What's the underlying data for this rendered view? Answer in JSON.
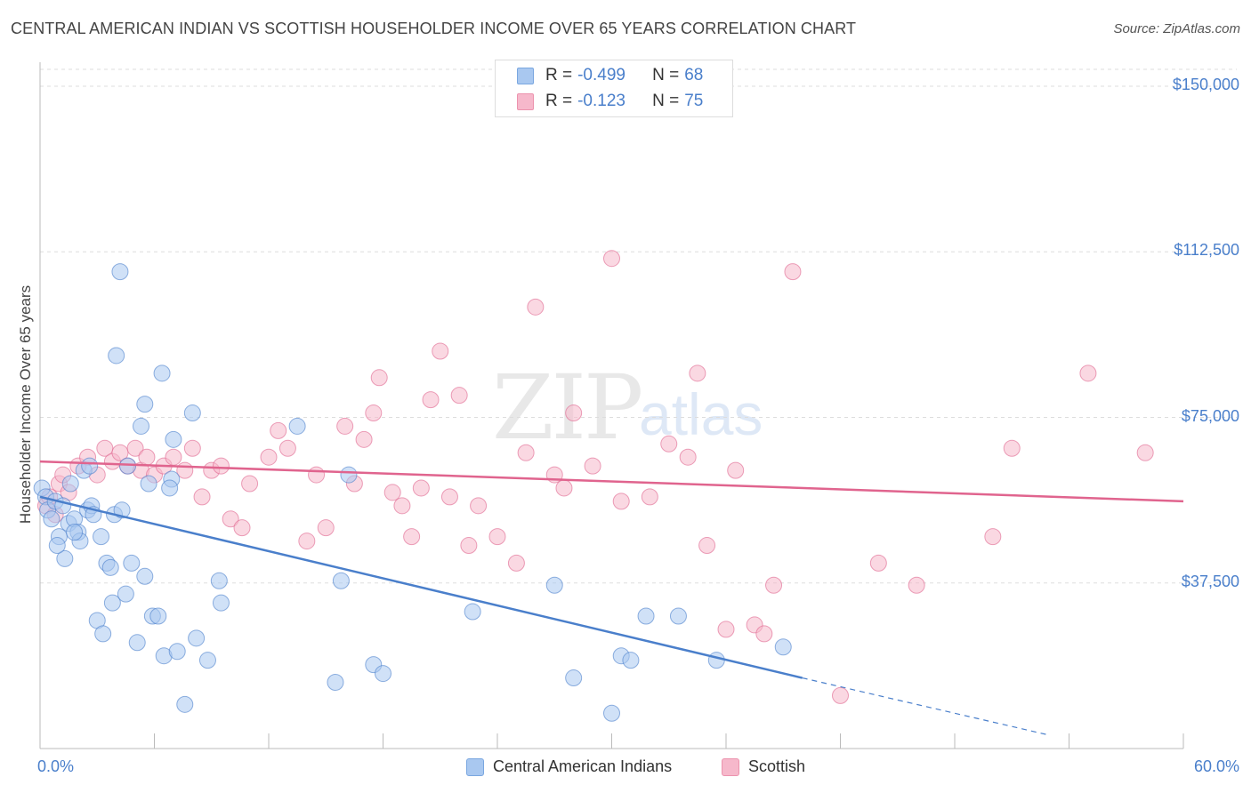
{
  "title": "CENTRAL AMERICAN INDIAN VS SCOTTISH HOUSEHOLDER INCOME OVER 65 YEARS CORRELATION CHART",
  "source": "Source: ZipAtlas.com",
  "watermark": {
    "zip": "ZIP",
    "atlas": "atlas"
  },
  "legend": {
    "rows": [
      {
        "r_label": "R = ",
        "r_value": "-0.499",
        "n_label": "N = ",
        "n_value": "68",
        "color": "#a9c8f0"
      },
      {
        "r_label": "R = ",
        "r_value": "-0.123",
        "n_label": "N = ",
        "n_value": "75",
        "color": "#f6b8cb"
      }
    ]
  },
  "bottom_legend": {
    "series1": "Central American Indians",
    "series2": "Scottish"
  },
  "chart_data": {
    "type": "scatter",
    "title": "CENTRAL AMERICAN INDIAN VS SCOTTISH HOUSEHOLDER INCOME OVER 65 YEARS CORRELATION CHART",
    "xlabel": "",
    "ylabel": "Householder Income Over 65 years",
    "xlim": [
      0,
      60
    ],
    "ylim": [
      0,
      155000
    ],
    "x_tick_labels": [
      "0.0%",
      "60.0%"
    ],
    "y_tick_values": [
      37500,
      75000,
      112500,
      150000
    ],
    "y_tick_labels": [
      "$37,500",
      "$75,000",
      "$112,500",
      "$150,000"
    ],
    "grid": true,
    "legend_position": "top-center",
    "series": [
      {
        "name": "Central American Indians",
        "color": "#4a7fcb",
        "fill": "#a9c8f0",
        "trend": {
          "x": [
            0,
            40
          ],
          "y": [
            57000,
            16000
          ],
          "dashed_to": [
            53,
            3000
          ]
        },
        "points": [
          [
            0.1,
            59000
          ],
          [
            0.3,
            57000
          ],
          [
            0.4,
            54000
          ],
          [
            0.6,
            52000
          ],
          [
            0.8,
            56000
          ],
          [
            1.0,
            48000
          ],
          [
            1.2,
            55000
          ],
          [
            1.3,
            43000
          ],
          [
            1.5,
            51000
          ],
          [
            1.6,
            60000
          ],
          [
            1.8,
            52000
          ],
          [
            2.0,
            49000
          ],
          [
            2.1,
            47000
          ],
          [
            2.3,
            63000
          ],
          [
            2.5,
            54000
          ],
          [
            2.6,
            64000
          ],
          [
            2.7,
            55000
          ],
          [
            2.8,
            53000
          ],
          [
            3.0,
            29000
          ],
          [
            3.2,
            48000
          ],
          [
            3.3,
            26000
          ],
          [
            3.5,
            42000
          ],
          [
            3.7,
            41000
          ],
          [
            3.8,
            33000
          ],
          [
            3.9,
            53000
          ],
          [
            4.0,
            89000
          ],
          [
            4.2,
            108000
          ],
          [
            4.3,
            54000
          ],
          [
            4.5,
            35000
          ],
          [
            4.6,
            64000
          ],
          [
            5.1,
            24000
          ],
          [
            5.3,
            73000
          ],
          [
            5.5,
            78000
          ],
          [
            5.7,
            60000
          ],
          [
            5.9,
            30000
          ],
          [
            6.2,
            30000
          ],
          [
            6.4,
            85000
          ],
          [
            6.5,
            21000
          ],
          [
            6.9,
            61000
          ],
          [
            7.0,
            70000
          ],
          [
            7.2,
            22000
          ],
          [
            7.6,
            10000
          ],
          [
            8.0,
            76000
          ],
          [
            8.2,
            25000
          ],
          [
            8.8,
            20000
          ],
          [
            9.4,
            38000
          ],
          [
            9.5,
            33000
          ],
          [
            13.5,
            73000
          ],
          [
            15.5,
            15000
          ],
          [
            15.8,
            38000
          ],
          [
            16.2,
            62000
          ],
          [
            17.5,
            19000
          ],
          [
            18.0,
            17000
          ],
          [
            22.7,
            31000
          ],
          [
            27.0,
            37000
          ],
          [
            28.0,
            16000
          ],
          [
            30.0,
            8000
          ],
          [
            30.5,
            21000
          ],
          [
            31.0,
            20000
          ],
          [
            31.8,
            30000
          ],
          [
            33.5,
            30000
          ],
          [
            35.5,
            20000
          ],
          [
            39.0,
            23000
          ],
          [
            1.8,
            49000
          ],
          [
            0.9,
            46000
          ],
          [
            5.5,
            39000
          ],
          [
            4.8,
            42000
          ],
          [
            6.8,
            59000
          ]
        ]
      },
      {
        "name": "Scottish",
        "color": "#e0648e",
        "fill": "#f6b8cb",
        "trend": {
          "x": [
            0,
            60
          ],
          "y": [
            65000,
            56000
          ]
        },
        "points": [
          [
            0.3,
            55000
          ],
          [
            0.5,
            57000
          ],
          [
            0.8,
            53000
          ],
          [
            1.0,
            60000
          ],
          [
            1.2,
            62000
          ],
          [
            1.5,
            58000
          ],
          [
            2.0,
            64000
          ],
          [
            2.5,
            66000
          ],
          [
            3.0,
            62000
          ],
          [
            3.4,
            68000
          ],
          [
            3.8,
            65000
          ],
          [
            4.2,
            67000
          ],
          [
            4.6,
            64000
          ],
          [
            5.0,
            68000
          ],
          [
            5.3,
            63000
          ],
          [
            5.6,
            66000
          ],
          [
            6.0,
            62000
          ],
          [
            6.5,
            64000
          ],
          [
            7.0,
            66000
          ],
          [
            7.6,
            63000
          ],
          [
            8.0,
            68000
          ],
          [
            8.5,
            57000
          ],
          [
            9.0,
            63000
          ],
          [
            9.5,
            64000
          ],
          [
            10.0,
            52000
          ],
          [
            10.6,
            50000
          ],
          [
            11.0,
            60000
          ],
          [
            12.0,
            66000
          ],
          [
            12.5,
            72000
          ],
          [
            13.0,
            68000
          ],
          [
            14.0,
            47000
          ],
          [
            14.5,
            62000
          ],
          [
            15.0,
            50000
          ],
          [
            16.0,
            73000
          ],
          [
            16.5,
            60000
          ],
          [
            17.0,
            70000
          ],
          [
            17.5,
            76000
          ],
          [
            17.8,
            84000
          ],
          [
            18.5,
            58000
          ],
          [
            19.0,
            55000
          ],
          [
            19.5,
            48000
          ],
          [
            20.0,
            59000
          ],
          [
            20.5,
            79000
          ],
          [
            21.0,
            90000
          ],
          [
            21.5,
            57000
          ],
          [
            22.0,
            80000
          ],
          [
            22.5,
            46000
          ],
          [
            23.0,
            55000
          ],
          [
            24.0,
            48000
          ],
          [
            25.0,
            42000
          ],
          [
            25.5,
            67000
          ],
          [
            26.0,
            100000
          ],
          [
            27.0,
            62000
          ],
          [
            27.5,
            59000
          ],
          [
            28.0,
            76000
          ],
          [
            29.0,
            64000
          ],
          [
            30.0,
            111000
          ],
          [
            30.5,
            56000
          ],
          [
            32.0,
            57000
          ],
          [
            33.0,
            69000
          ],
          [
            34.0,
            66000
          ],
          [
            34.5,
            85000
          ],
          [
            35.0,
            46000
          ],
          [
            36.0,
            27000
          ],
          [
            36.5,
            63000
          ],
          [
            37.5,
            28000
          ],
          [
            38.0,
            26000
          ],
          [
            38.5,
            37000
          ],
          [
            39.5,
            108000
          ],
          [
            42.0,
            12000
          ],
          [
            44.0,
            42000
          ],
          [
            46.0,
            37000
          ],
          [
            50.0,
            48000
          ],
          [
            51.0,
            68000
          ],
          [
            55.0,
            85000
          ],
          [
            58.0,
            67000
          ]
        ]
      }
    ]
  }
}
